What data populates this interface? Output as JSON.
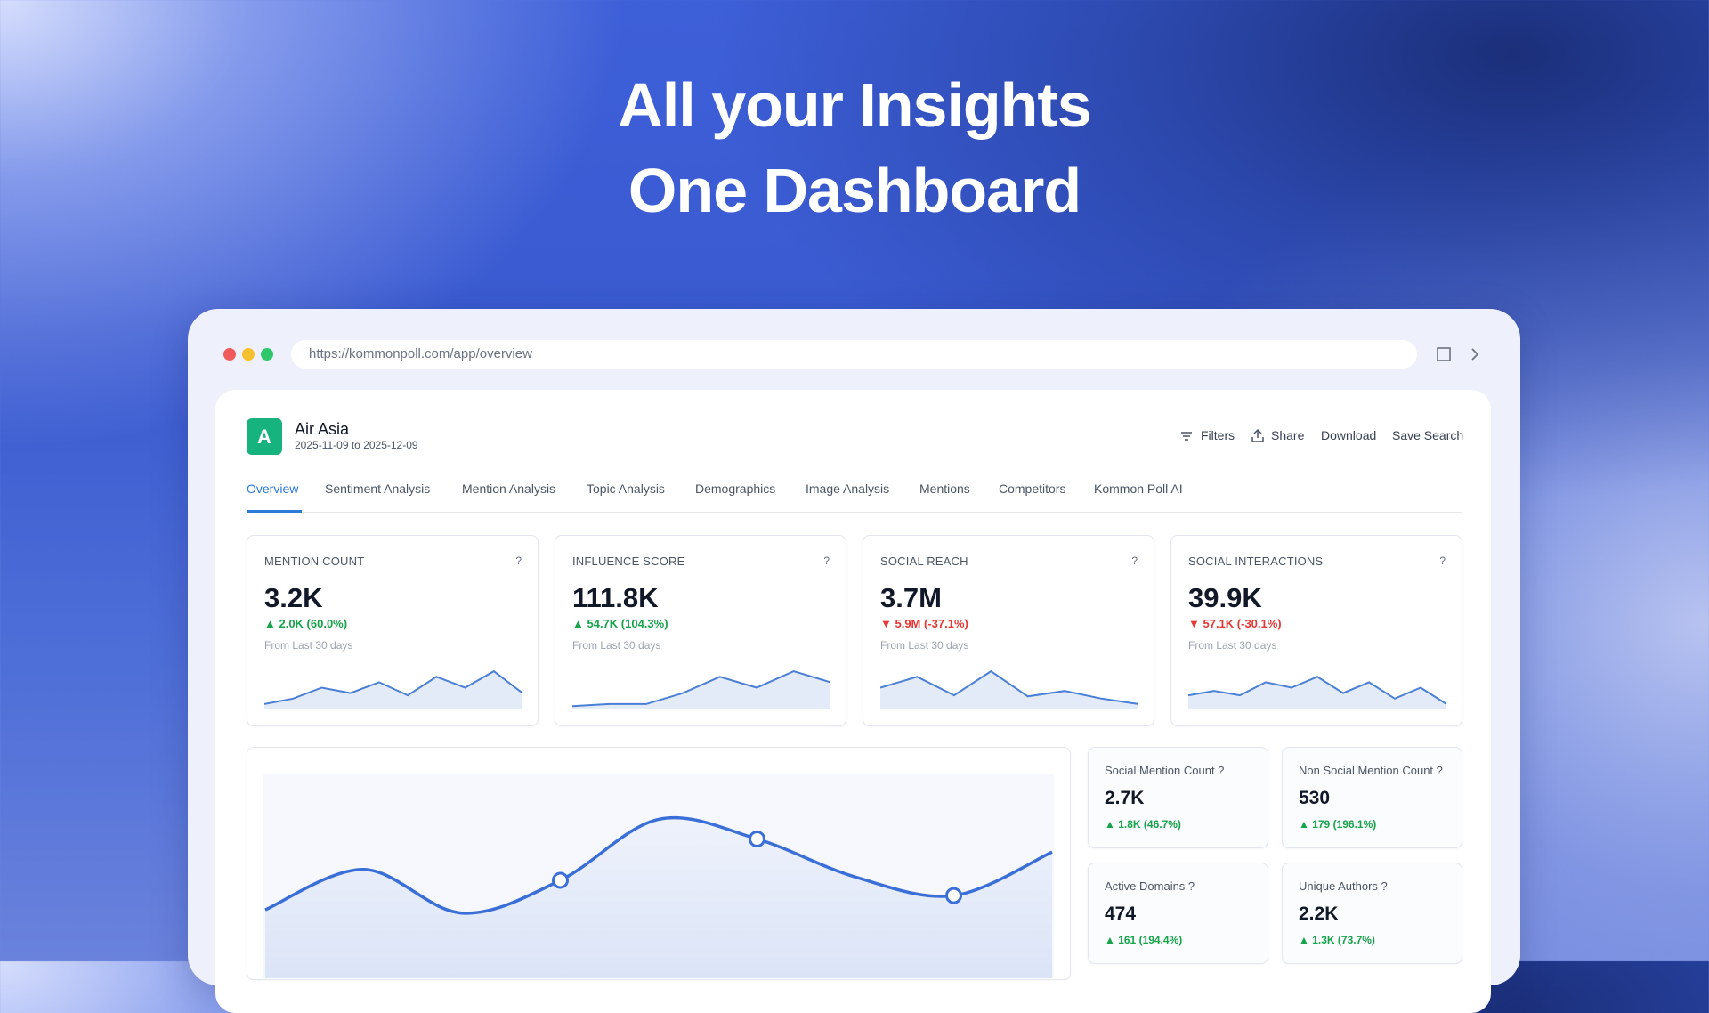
{
  "headline": {
    "line1": "All your Insights",
    "line2": "One Dashboard"
  },
  "browser": {
    "url": "https://kommonpoll.com/app/overview"
  },
  "brand": {
    "logo": "A",
    "name": "Air Asia",
    "date_range": "2025-11-09 to 2025-12-09"
  },
  "actions": [
    "Filters",
    "Share",
    "Download",
    "Save Search"
  ],
  "tabs": [
    "Overview",
    "Sentiment Analysis",
    "Mention Analysis",
    "Topic Analysis",
    "Demographics",
    "Image Analysis",
    "Mentions",
    "Competitors",
    "Kommon Poll AI"
  ],
  "metrics": [
    {
      "label": "MENTION COUNT",
      "help": "?",
      "value": "3.2K",
      "delta": "▲ 2.0K (60.0%)",
      "delta_color": "#16a34a",
      "note": "From Last 30 days",
      "sparkline": [
        5,
        10,
        20,
        15,
        25,
        13,
        30,
        20,
        35,
        15
      ]
    },
    {
      "label": "INFLUENCE SCORE",
      "help": "?",
      "value": "111.8K",
      "delta": "▲ 54.7K (104.3%)",
      "delta_color": "#16a34a",
      "note": "From Last 30 days",
      "sparkline": [
        3,
        5,
        5,
        15,
        30,
        20,
        35,
        25
      ]
    },
    {
      "label": "SOCIAL REACH",
      "help": "?",
      "value": "3.7M",
      "delta": "▼ 5.9M (-37.1%)",
      "delta_color": "#e53935",
      "note": "From Last 30 days",
      "sparkline": [
        20,
        30,
        13,
        35,
        12,
        17,
        10,
        5
      ]
    },
    {
      "label": "SOCIAL INTERACTIONS",
      "help": "?",
      "value": "39.9K",
      "delta": "▼ 57.1K (-30.1%)",
      "delta_color": "#e53935",
      "note": "From Last 30 days",
      "sparkline": [
        13,
        17,
        13,
        25,
        20,
        30,
        15,
        25,
        10,
        20,
        5
      ]
    }
  ],
  "stats": [
    {
      "label": "Social Mention Count ?",
      "value": "2.7K",
      "delta": "▲ 1.8K (46.7%)"
    },
    {
      "label": "Non Social Mention Count ?",
      "value": "530",
      "delta": "▲ 179 (196.1%)"
    },
    {
      "label": "Active Domains ?",
      "value": "474",
      "delta": "▲ 161 (194.4%)"
    },
    {
      "label": "Unique Authors ?",
      "value": "2.2K",
      "delta": "▲ 1.3K (73.7%)"
    }
  ],
  "main_chart": {
    "type": "line",
    "color": "#3a6fd8",
    "values": [
      35,
      72,
      32,
      62,
      118,
      100,
      65,
      48,
      88
    ]
  }
}
